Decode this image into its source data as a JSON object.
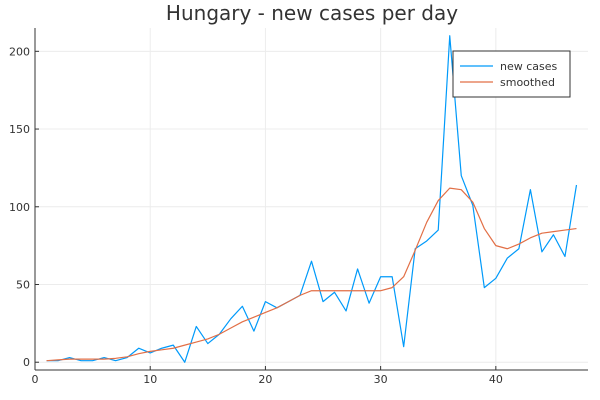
{
  "chart_data": {
    "type": "line",
    "title": "Hungary - new cases per day",
    "xlabel": "",
    "ylabel": "",
    "xlim": [
      0,
      48
    ],
    "ylim": [
      -5,
      215
    ],
    "x_ticks": [
      0,
      10,
      20,
      30,
      40
    ],
    "y_ticks": [
      0,
      50,
      100,
      150,
      200
    ],
    "grid": true,
    "legend_position": "top-right",
    "x": [
      1,
      2,
      3,
      4,
      5,
      6,
      7,
      8,
      9,
      10,
      11,
      12,
      13,
      14,
      15,
      16,
      17,
      18,
      19,
      20,
      21,
      22,
      23,
      24,
      25,
      26,
      27,
      28,
      29,
      30,
      31,
      32,
      33,
      34,
      35,
      36,
      37,
      38,
      39,
      40,
      41,
      42,
      43,
      44,
      45,
      46,
      47
    ],
    "series": [
      {
        "name": "new cases",
        "color": "#009AFA",
        "values": [
          1,
          1,
          3,
          1,
          1,
          3,
          1,
          3,
          9,
          6,
          9,
          11,
          0,
          23,
          12,
          18,
          28,
          36,
          20,
          39,
          35,
          39,
          43,
          65,
          39,
          45,
          33,
          60,
          38,
          55,
          55,
          10,
          73,
          78,
          85,
          210,
          120,
          101,
          48,
          54,
          67,
          73,
          111,
          71,
          82,
          68,
          114
        ]
      },
      {
        "name": "smoothed",
        "color": "#E26F46",
        "values": [
          1,
          1.5,
          2,
          2,
          2,
          2,
          2.5,
          3.5,
          5.5,
          7,
          8,
          9,
          11,
          13,
          15,
          18,
          22,
          26,
          29,
          32,
          35,
          39,
          43,
          46,
          46,
          46,
          46,
          46,
          46,
          46,
          48,
          55,
          72,
          90,
          104,
          112,
          111,
          103,
          86,
          75,
          73,
          76,
          80,
          83,
          84,
          85,
          86
        ]
      }
    ]
  }
}
